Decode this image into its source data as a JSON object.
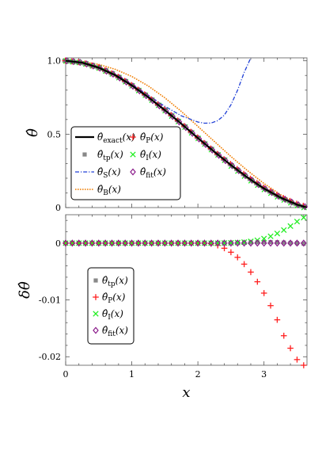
{
  "chart_data": [
    {
      "type": "line",
      "ylabel": "θ̂",
      "xlim": [
        0,
        3.65
      ],
      "ylim": [
        0,
        1.02
      ],
      "x_ticks": [
        "0",
        "1",
        "2",
        "3"
      ],
      "y_ticks": [
        "0",
        "0.5",
        "1.0"
      ],
      "legend_position": "bottom-left",
      "curves": [
        {
          "name": "exact",
          "label": "θ̂exact(x)",
          "color": "#000000",
          "style": "solid",
          "x": [
            0,
            0.25,
            0.5,
            0.75,
            1.0,
            1.25,
            1.5,
            1.75,
            2.0,
            2.25,
            2.5,
            2.75,
            3.0,
            3.25,
            3.5,
            3.65
          ],
          "y": [
            1.0,
            0.987,
            0.953,
            0.902,
            0.832,
            0.752,
            0.664,
            0.571,
            0.474,
            0.38,
            0.29,
            0.205,
            0.13,
            0.068,
            0.02,
            0.0
          ]
        },
        {
          "name": "S",
          "label": "θ̂S(x)",
          "color": "#1f3fd6",
          "style": "dashdot",
          "x": [
            0,
            0.25,
            0.5,
            0.75,
            1.0,
            1.25,
            1.5,
            1.75,
            2.0,
            2.1,
            2.2,
            2.3,
            2.4,
            2.5,
            2.6,
            2.7,
            2.8
          ],
          "y": [
            1.0,
            0.99,
            0.958,
            0.907,
            0.84,
            0.765,
            0.69,
            0.625,
            0.583,
            0.575,
            0.576,
            0.592,
            0.63,
            0.7,
            0.8,
            0.92,
            1.02
          ]
        },
        {
          "name": "B",
          "label": "θ̂B(x)",
          "color": "#f07d00",
          "style": "dotted",
          "x": [
            0,
            0.25,
            0.5,
            0.75,
            1.0,
            1.25,
            1.5,
            1.75,
            2.0,
            2.25,
            2.5,
            2.75,
            3.0,
            3.25,
            3.5,
            3.65
          ],
          "y": [
            1.0,
            0.994,
            0.975,
            0.942,
            0.893,
            0.828,
            0.748,
            0.655,
            0.553,
            0.45,
            0.348,
            0.252,
            0.164,
            0.088,
            0.028,
            0.0
          ]
        }
      ],
      "marker_series": [
        {
          "name": "tp",
          "label": "θ̂tp(x)",
          "color": "#888888",
          "marker": "square"
        },
        {
          "name": "P",
          "label": "θ̂P(x)",
          "color": "#ff2020",
          "marker": "plus"
        },
        {
          "name": "I",
          "label": "θ̂I(x)",
          "color": "#22ee22",
          "marker": "x"
        },
        {
          "name": "fit",
          "label": "θ̂fit(x)",
          "color": "#8a1a8a",
          "marker": "diamond"
        }
      ],
      "legend_columns": [
        [
          "exact",
          "tp",
          "S",
          "B"
        ],
        [
          "P",
          "I",
          "fit"
        ]
      ]
    },
    {
      "type": "scatter",
      "ylabel": "δθ̂",
      "xlabel": "x",
      "xlim": [
        0,
        3.65
      ],
      "ylim": [
        -0.0215,
        0.005
      ],
      "x_ticks": [
        "0",
        "1",
        "2",
        "3"
      ],
      "y_ticks": [
        "0",
        "-0.01",
        "-0.02"
      ],
      "legend_position": "center-left",
      "x": [
        0,
        0.1,
        0.2,
        0.3,
        0.4,
        0.5,
        0.6,
        0.7,
        0.8,
        0.9,
        1.0,
        1.1,
        1.2,
        1.3,
        1.4,
        1.5,
        1.6,
        1.7,
        1.8,
        1.9,
        2.0,
        2.1,
        2.2,
        2.3,
        2.4,
        2.5,
        2.6,
        2.7,
        2.8,
        2.9,
        3.0,
        3.1,
        3.2,
        3.3,
        3.4,
        3.5,
        3.6
      ],
      "series": [
        {
          "name": "tp",
          "label": "θ̂tp(x)",
          "color": "#888888",
          "marker": "square",
          "values": [
            0,
            0,
            0,
            0,
            0,
            0,
            0,
            0,
            0,
            0,
            0,
            0,
            0,
            0,
            0,
            0,
            0,
            0,
            0,
            0,
            0,
            0,
            0,
            2e-05,
            3e-05,
            5e-05,
            7e-05,
            0.0001,
            0.00012,
            0.00015,
            0.00017,
            0.00018,
            0.00015,
            0.0001,
            5e-05,
            0,
            -0.0001
          ]
        },
        {
          "name": "P",
          "label": "θ̂P(x)",
          "color": "#ff2020",
          "marker": "plus",
          "values": [
            0,
            0,
            0,
            0,
            0,
            0,
            0,
            0,
            0,
            0,
            0,
            0,
            0,
            0,
            0,
            0,
            0,
            0,
            0,
            0,
            0,
            0,
            -0.0001,
            -0.0004,
            -0.0009,
            -0.0016,
            -0.0025,
            -0.0037,
            -0.0051,
            -0.0068,
            -0.0088,
            -0.011,
            -0.0135,
            -0.0163,
            -0.0185,
            -0.0205,
            -0.0215
          ]
        },
        {
          "name": "I",
          "label": "θ̂I(x)",
          "color": "#22ee22",
          "marker": "x",
          "values": [
            0,
            0,
            0,
            0,
            0,
            0,
            0,
            0,
            0,
            0,
            0,
            0,
            0,
            0,
            0,
            0,
            0,
            0,
            0,
            0,
            0,
            0,
            0,
            0,
            2e-05,
            5e-05,
            0.0001,
            0.00018,
            0.0003,
            0.0005,
            0.0008,
            0.0012,
            0.0017,
            0.0023,
            0.003,
            0.0038,
            0.0045
          ]
        },
        {
          "name": "fit",
          "label": "θ̂fit(x)",
          "color": "#8a1a8a",
          "marker": "diamond",
          "values": [
            0,
            0,
            0,
            0,
            0,
            0,
            0,
            0,
            0,
            0,
            0,
            0,
            0,
            0,
            0,
            0,
            0,
            0,
            0,
            0,
            0,
            0,
            0,
            0,
            0,
            0,
            0,
            0,
            0,
            0,
            0,
            0,
            0,
            0,
            0,
            0,
            0
          ]
        }
      ]
    }
  ]
}
